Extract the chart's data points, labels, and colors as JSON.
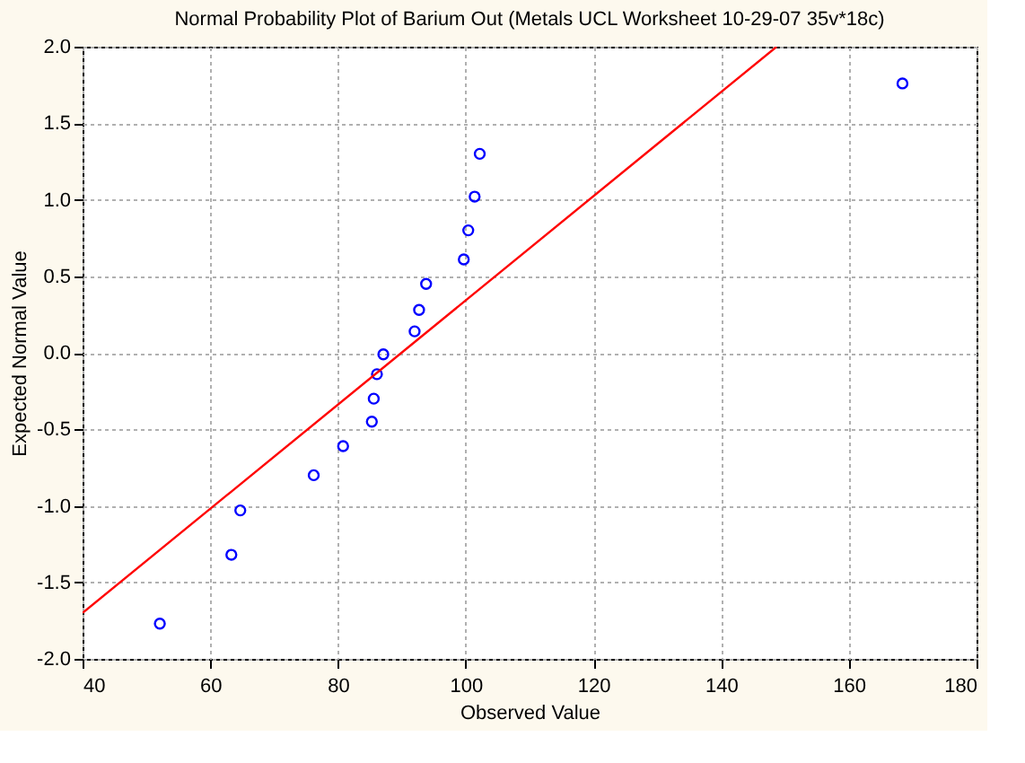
{
  "chart_data": {
    "type": "scatter",
    "title": "Normal Probability Plot of Barium Out (Metals UCL Worksheet 10-29-07 35v*18c)",
    "xlabel": "Observed Value",
    "ylabel": "Expected Normal Value",
    "series": [
      {
        "color": "#0000ff",
        "marker": "circle",
        "x": [
          52.1,
          63.3,
          64.7,
          76.2,
          80.8,
          85.3,
          85.6,
          86.1,
          87.1,
          92.0,
          92.7,
          93.8,
          99.7,
          100.4,
          101.4,
          102.2,
          168.4
        ],
        "values": [
          -1.77,
          -1.32,
          -1.03,
          -0.8,
          -0.61,
          -0.45,
          -0.3,
          -0.14,
          -0.01,
          0.14,
          0.28,
          0.45,
          0.61,
          0.8,
          1.02,
          1.3,
          1.76
        ]
      },
      {
        "type": "line",
        "color": "#ff0000",
        "x": [
          40,
          148.7
        ],
        "values": [
          -1.7,
          2.0
        ]
      }
    ],
    "xlim": [
      40,
      180
    ],
    "xticks": [
      40,
      60,
      80,
      100,
      120,
      140,
      160,
      180
    ],
    "ylim": [
      -2.0,
      2.0
    ],
    "yticks": [
      {
        "value": -2,
        "label": "-2.0"
      },
      {
        "value": -1.5,
        "label": "-1.5"
      },
      {
        "value": -1,
        "label": "-1.0"
      },
      {
        "value": -0.5,
        "label": "-0.5"
      },
      {
        "value": 0,
        "label": "0.0"
      },
      {
        "value": 0.5,
        "label": "0.5"
      },
      {
        "value": 1,
        "label": "1.0"
      },
      {
        "value": 1.5,
        "label": "1.5"
      },
      {
        "value": 2,
        "label": "2.0"
      }
    ],
    "grid": true
  }
}
